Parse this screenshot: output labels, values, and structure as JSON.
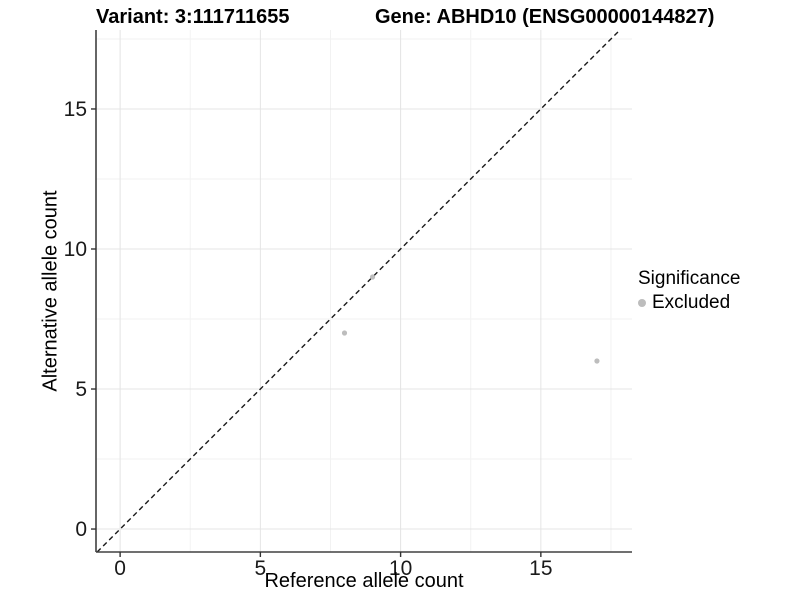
{
  "chart_data": {
    "type": "scatter",
    "title_left": "Variant: 3:111711655",
    "title_right": "Gene: ABHD10 (ENSG00000144827)",
    "xlabel": "Reference allele count",
    "ylabel": "Alternative allele count",
    "xlim": [
      -0.86,
      18.25
    ],
    "ylim": [
      -0.82,
      17.82
    ],
    "x_ticks": [
      0,
      5,
      10,
      15
    ],
    "y_ticks": [
      0,
      5,
      10,
      15
    ],
    "x_minor_ticks": [
      2.5,
      7.5,
      12.5,
      17.5
    ],
    "y_minor_ticks": [
      2.5,
      7.5,
      12.5,
      17.5
    ],
    "grid": true,
    "points": [
      {
        "x": 8,
        "y": 7,
        "significance": "Excluded"
      },
      {
        "x": 9,
        "y": 9,
        "significance": "Excluded"
      },
      {
        "x": 17,
        "y": 6,
        "significance": "Excluded"
      }
    ],
    "identity_line": {
      "slope": 1,
      "intercept": 0,
      "style": "dashed"
    },
    "legend": {
      "title": "Significance",
      "position": "right",
      "items": [
        {
          "label": "Excluded",
          "color": "#bdbdbd"
        }
      ]
    },
    "colors": {
      "point": "#bdbdbd",
      "grid_major": "#e4e4e4",
      "grid_minor": "#f2f2f2",
      "spine": "#404040",
      "tick": "#333333",
      "abline": "#1a1a1a",
      "background": "#ffffff"
    }
  }
}
